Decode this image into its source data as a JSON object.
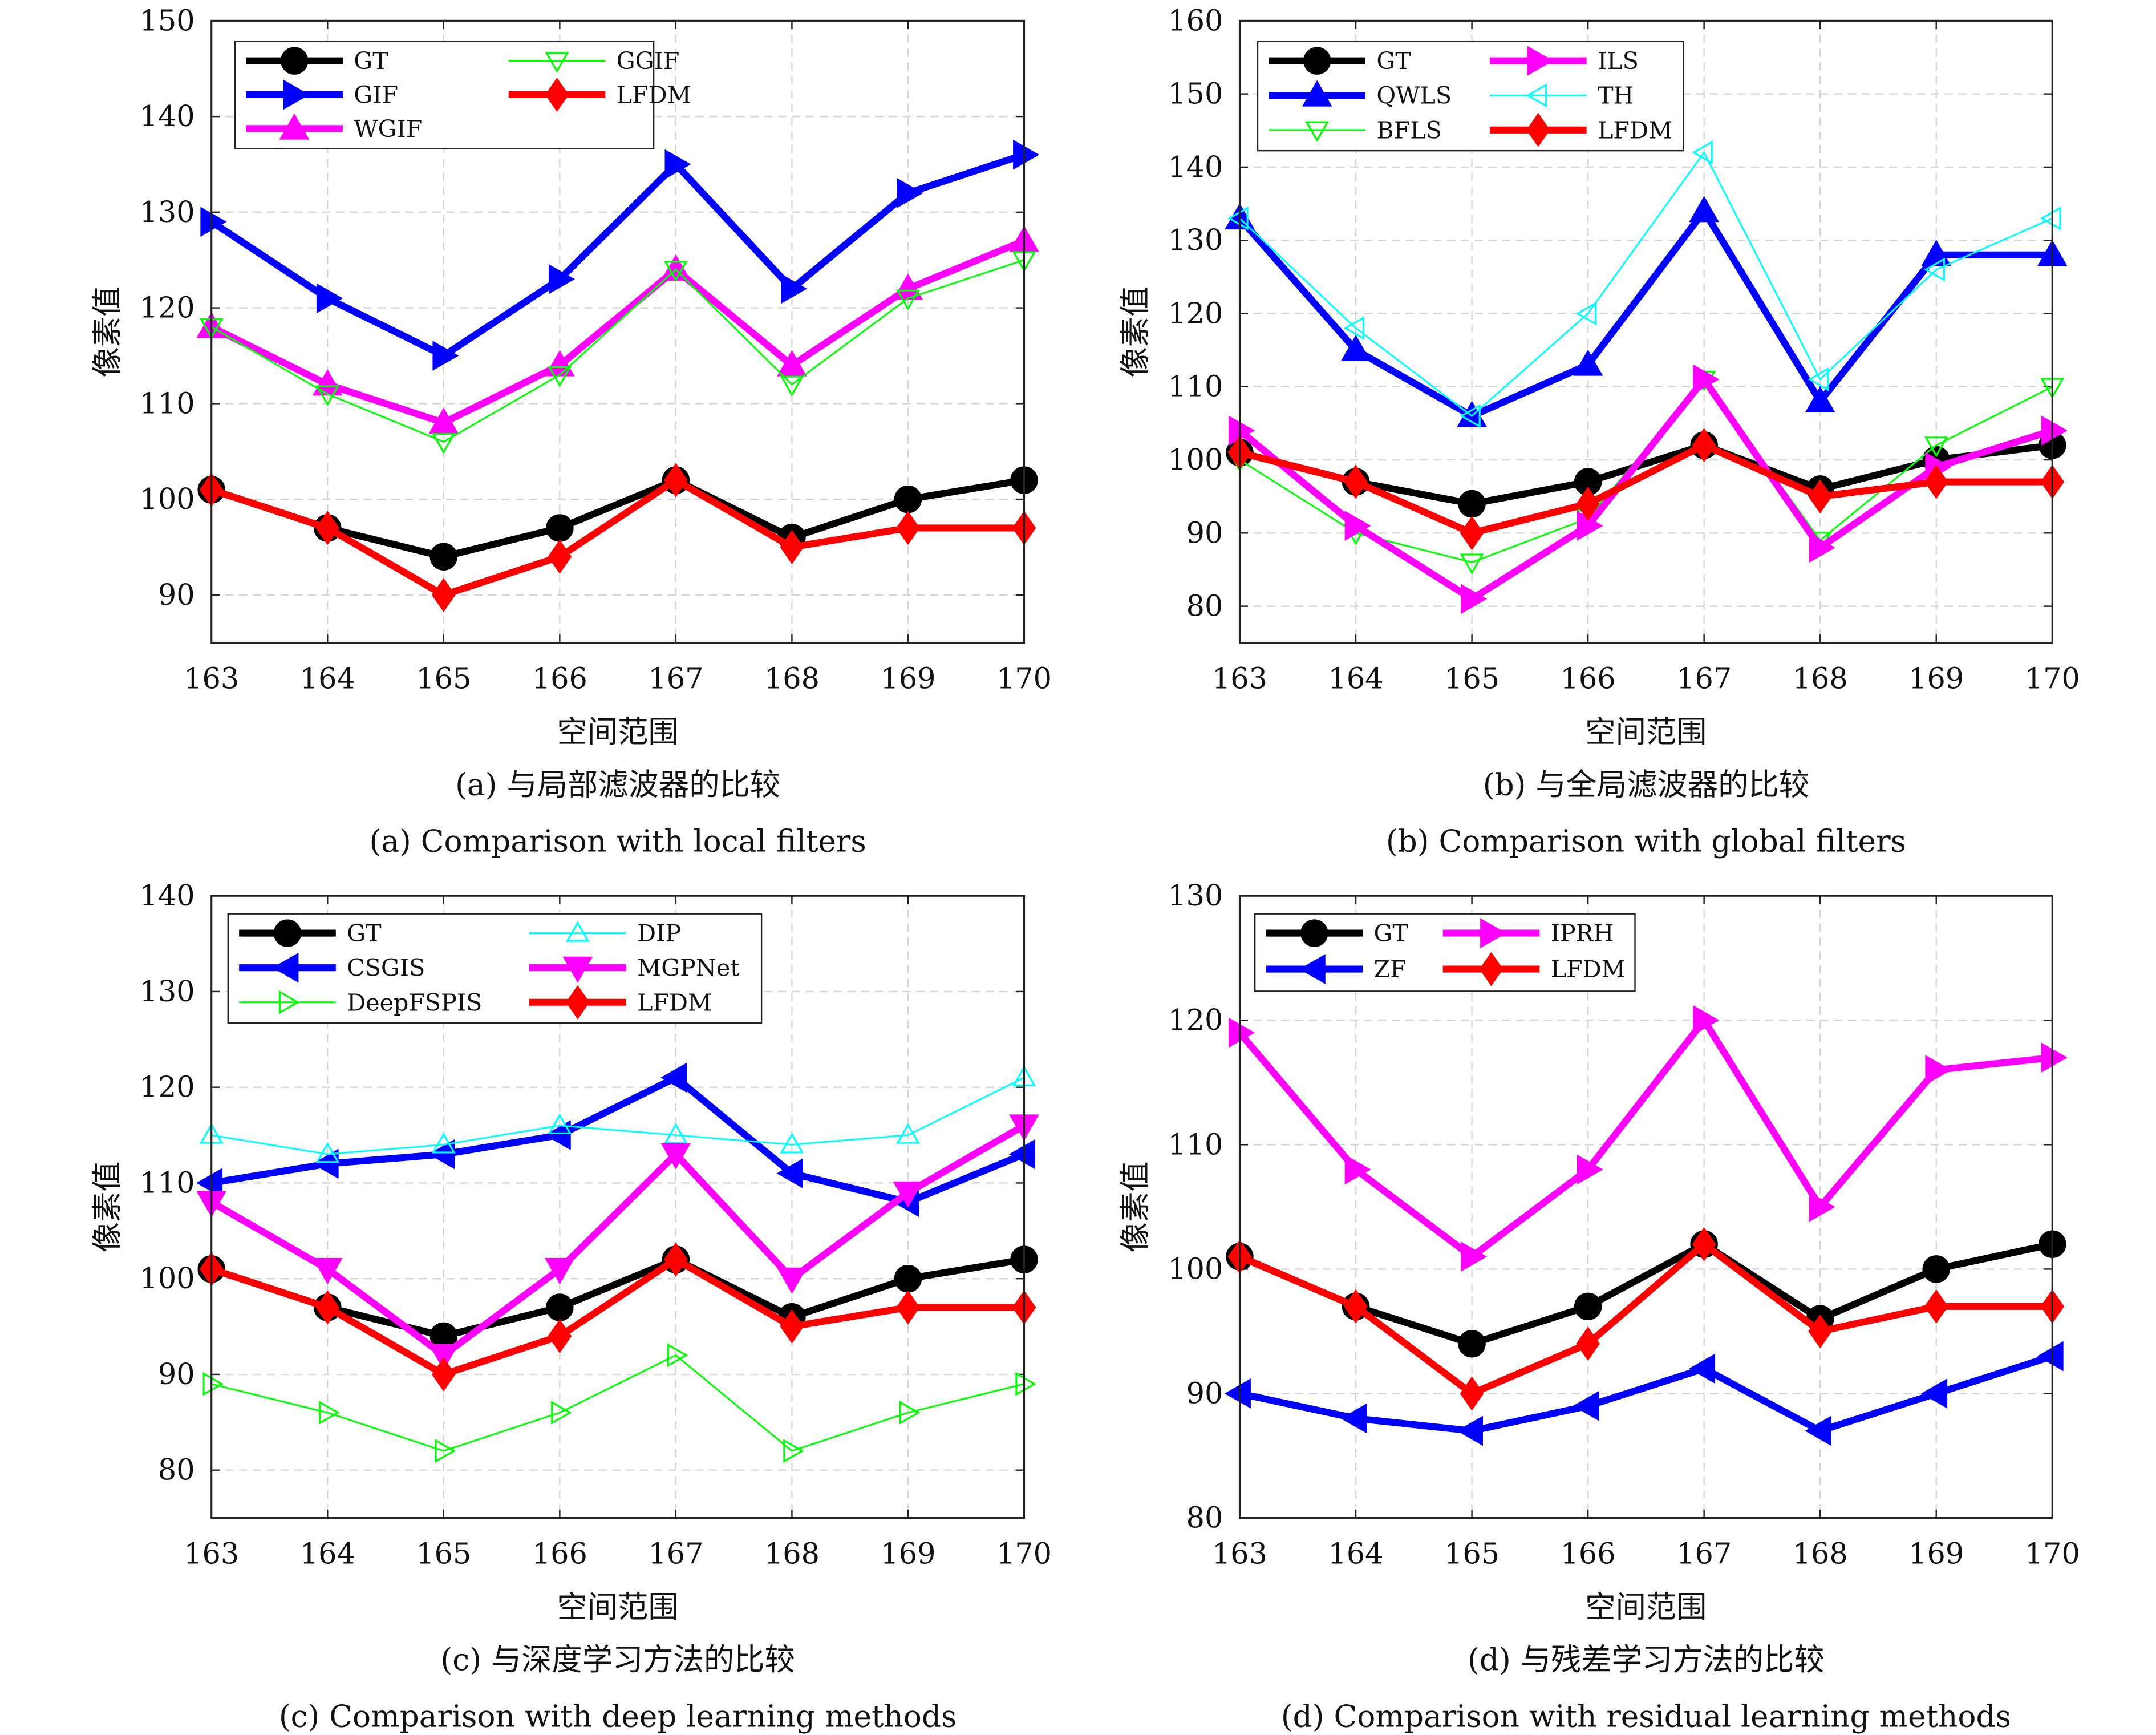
{
  "chart_data": [
    {
      "type": "line",
      "caption_cn": "(a) 与局部滤波器的比较",
      "caption_en": "(a) Comparison with local filters",
      "xlabel": "空间范围",
      "ylabel": "像素值",
      "x": [
        163,
        164,
        165,
        166,
        167,
        168,
        169,
        170
      ],
      "xlim": [
        163,
        170
      ],
      "ylim": [
        85,
        150
      ],
      "yticks": [
        90,
        100,
        110,
        120,
        130,
        140,
        150
      ],
      "grid": true,
      "legend_placement": "top-left",
      "legend_columns": 2,
      "series": [
        {
          "name": "GT",
          "color": "#000000",
          "marker": "circle",
          "filled": true,
          "thick": true,
          "values": [
            101,
            97,
            94,
            97,
            102,
            96,
            100,
            102
          ]
        },
        {
          "name": "GIF",
          "color": "#0000ff",
          "marker": "triangle-right",
          "filled": true,
          "thick": true,
          "values": [
            129,
            121,
            115,
            123,
            135,
            122,
            132,
            136
          ]
        },
        {
          "name": "WGIF",
          "color": "#ff00ff",
          "marker": "triangle-up",
          "filled": true,
          "thick": true,
          "values": [
            118,
            112,
            108,
            114,
            124,
            114,
            122,
            127
          ]
        },
        {
          "name": "GGIF",
          "color": "#00ff00",
          "marker": "triangle-down",
          "filled": false,
          "thick": false,
          "values": [
            118,
            111,
            106,
            113,
            124,
            112,
            121,
            125
          ]
        },
        {
          "name": "LFDM",
          "color": "#ff0000",
          "marker": "diamond",
          "filled": true,
          "thick": true,
          "values": [
            101,
            97,
            90,
            94,
            102,
            95,
            97,
            97
          ]
        }
      ]
    },
    {
      "type": "line",
      "caption_cn": "(b) 与全局滤波器的比较",
      "caption_en": "(b) Comparison with global filters",
      "xlabel": "空间范围",
      "ylabel": "像素值",
      "x": [
        163,
        164,
        165,
        166,
        167,
        168,
        169,
        170
      ],
      "xlim": [
        163,
        170
      ],
      "ylim": [
        75,
        160
      ],
      "yticks": [
        80,
        90,
        100,
        110,
        120,
        130,
        140,
        150,
        160
      ],
      "grid": true,
      "legend_placement": "top-left",
      "legend_columns": 2,
      "series": [
        {
          "name": "GT",
          "color": "#000000",
          "marker": "circle",
          "filled": true,
          "thick": true,
          "values": [
            101,
            97,
            94,
            97,
            102,
            96,
            100,
            102
          ]
        },
        {
          "name": "QWLS",
          "color": "#0000ff",
          "marker": "triangle-up",
          "filled": true,
          "thick": true,
          "values": [
            133,
            115,
            106,
            113,
            134,
            108,
            128,
            128
          ]
        },
        {
          "name": "BFLS",
          "color": "#00ff00",
          "marker": "triangle-down",
          "filled": false,
          "thick": false,
          "values": [
            100,
            90,
            86,
            92,
            111,
            89,
            102,
            110
          ]
        },
        {
          "name": "ILS",
          "color": "#ff00ff",
          "marker": "triangle-right",
          "filled": true,
          "thick": true,
          "values": [
            104,
            91,
            81,
            91,
            111,
            88,
            99,
            104
          ]
        },
        {
          "name": "TH",
          "color": "#00ffff",
          "marker": "triangle-left",
          "filled": false,
          "thick": false,
          "values": [
            133,
            118,
            106,
            120,
            142,
            111,
            126,
            133
          ]
        },
        {
          "name": "LFDM",
          "color": "#ff0000",
          "marker": "diamond",
          "filled": true,
          "thick": true,
          "values": [
            101,
            97,
            90,
            94,
            102,
            95,
            97,
            97
          ]
        }
      ]
    },
    {
      "type": "line",
      "caption_cn": "(c) 与深度学习方法的比较",
      "caption_en": "(c) Comparison with deep learning methods",
      "xlabel": "空间范围",
      "ylabel": "像素值",
      "x": [
        163,
        164,
        165,
        166,
        167,
        168,
        169,
        170
      ],
      "xlim": [
        163,
        170
      ],
      "ylim": [
        75,
        140
      ],
      "yticks": [
        80,
        90,
        100,
        110,
        120,
        130,
        140
      ],
      "grid": true,
      "legend_placement": "top-left",
      "legend_columns": 2,
      "series": [
        {
          "name": "GT",
          "color": "#000000",
          "marker": "circle",
          "filled": true,
          "thick": true,
          "values": [
            101,
            97,
            94,
            97,
            102,
            96,
            100,
            102
          ]
        },
        {
          "name": "CSGIS",
          "color": "#0000ff",
          "marker": "triangle-left",
          "filled": true,
          "thick": true,
          "values": [
            110,
            112,
            113,
            115,
            121,
            111,
            108,
            113
          ]
        },
        {
          "name": "DeepFSPIS",
          "color": "#00ff00",
          "marker": "triangle-right",
          "filled": false,
          "thick": false,
          "values": [
            89,
            86,
            82,
            86,
            92,
            82,
            86,
            89
          ]
        },
        {
          "name": "DIP",
          "color": "#00ffff",
          "marker": "triangle-up",
          "filled": false,
          "thick": false,
          "values": [
            115,
            113,
            114,
            116,
            115,
            114,
            115,
            121
          ]
        },
        {
          "name": "MGPNet",
          "color": "#ff00ff",
          "marker": "triangle-down",
          "filled": true,
          "thick": true,
          "values": [
            108,
            101,
            92,
            101,
            113,
            100,
            109,
            116
          ]
        },
        {
          "name": "LFDM",
          "color": "#ff0000",
          "marker": "diamond",
          "filled": true,
          "thick": true,
          "values": [
            101,
            97,
            90,
            94,
            102,
            95,
            97,
            97
          ]
        }
      ]
    },
    {
      "type": "line",
      "caption_cn": "(d) 与残差学习方法的比较",
      "caption_en": "(d) Comparison with residual learning methods",
      "xlabel": "空间范围",
      "ylabel": "像素值",
      "x": [
        163,
        164,
        165,
        166,
        167,
        168,
        169,
        170
      ],
      "xlim": [
        163,
        170
      ],
      "ylim": [
        80,
        130
      ],
      "yticks": [
        80,
        90,
        100,
        110,
        120,
        130
      ],
      "grid": true,
      "legend_placement": "top-left",
      "legend_columns": 2,
      "series": [
        {
          "name": "GT",
          "color": "#000000",
          "marker": "circle",
          "filled": true,
          "thick": true,
          "values": [
            101,
            97,
            94,
            97,
            102,
            96,
            100,
            102
          ]
        },
        {
          "name": "ZF",
          "color": "#0000ff",
          "marker": "triangle-left",
          "filled": true,
          "thick": true,
          "values": [
            90,
            88,
            87,
            89,
            92,
            87,
            90,
            93
          ]
        },
        {
          "name": "IPRH",
          "color": "#ff00ff",
          "marker": "triangle-right",
          "filled": true,
          "thick": true,
          "values": [
            119,
            108,
            101,
            108,
            120,
            105,
            116,
            117
          ]
        },
        {
          "name": "LFDM",
          "color": "#ff0000",
          "marker": "diamond",
          "filled": true,
          "thick": true,
          "values": [
            101,
            97,
            90,
            94,
            102,
            95,
            97,
            97
          ]
        }
      ]
    }
  ]
}
